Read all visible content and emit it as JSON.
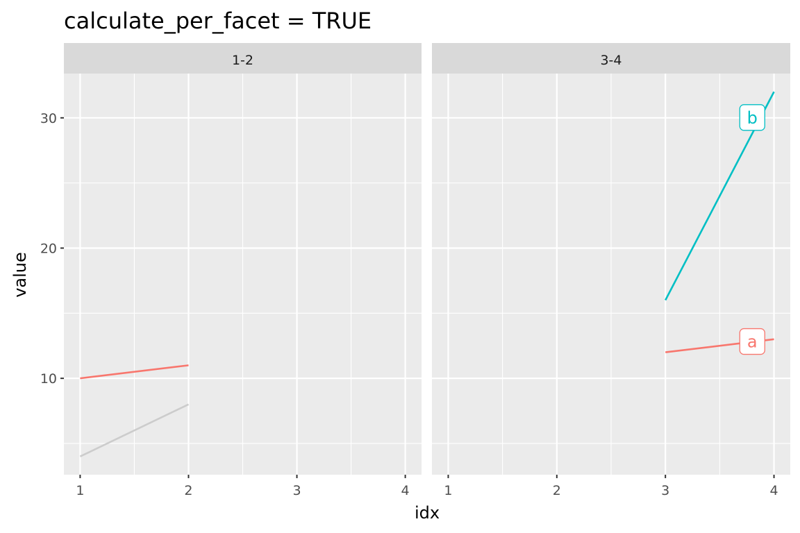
{
  "chart_data": {
    "type": "line",
    "title": "calculate_per_facet = TRUE",
    "xlabel": "idx",
    "ylabel": "value",
    "xlim": [
      0.85,
      4.15
    ],
    "ylim": [
      2.6,
      33.4
    ],
    "x_ticks": [
      "1",
      "2",
      "3",
      "4"
    ],
    "y_ticks": [
      "10",
      "20",
      "30"
    ],
    "grid": true,
    "facets": [
      {
        "strip": "1-2",
        "series": [
          {
            "name": "a",
            "color": "#F8766D",
            "x": [
              1,
              2
            ],
            "y": [
              10,
              11
            ]
          },
          {
            "color": "#CCCCCC",
            "x": [
              1,
              2
            ],
            "y": [
              4,
              8
            ]
          }
        ]
      },
      {
        "strip": "3-4",
        "series": [
          {
            "name": "b",
            "color": "#00BFC4",
            "x": [
              3,
              4
            ],
            "y": [
              16,
              32
            ],
            "label": "b",
            "label_at": [
              3.8,
              30
            ]
          },
          {
            "name": "a",
            "color": "#F8766D",
            "x": [
              3,
              4
            ],
            "y": [
              12,
              13
            ],
            "label": "a",
            "label_at": [
              3.8,
              12.8
            ]
          }
        ]
      }
    ]
  }
}
